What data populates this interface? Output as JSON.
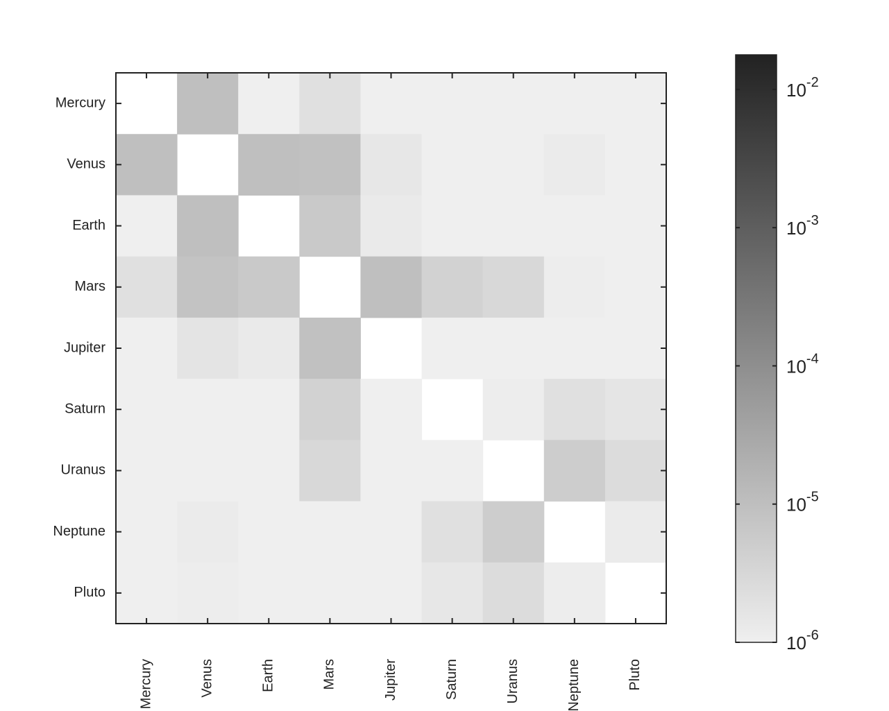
{
  "chart_data": {
    "type": "heatmap",
    "categories": [
      "Mercury",
      "Venus",
      "Earth",
      "Mars",
      "Jupiter",
      "Saturn",
      "Uranus",
      "Neptune",
      "Pluto"
    ],
    "values": [
      [
        null,
        1e-05,
        1e-06,
        2e-06,
        1e-06,
        1e-06,
        1e-06,
        1e-06,
        1e-06
      ],
      [
        1e-05,
        null,
        1e-05,
        9e-06,
        1.5e-06,
        1e-06,
        1e-06,
        1.2e-06,
        1e-06
      ],
      [
        1e-06,
        1e-05,
        null,
        6e-06,
        1.3e-06,
        1e-06,
        1e-06,
        1e-06,
        1e-06
      ],
      [
        2e-06,
        8e-06,
        6e-06,
        null,
        1e-05,
        4e-06,
        3e-06,
        1.1e-06,
        1e-06
      ],
      [
        1e-06,
        1.7e-06,
        1.3e-06,
        9e-06,
        null,
        1e-06,
        1e-06,
        1e-06,
        1e-06
      ],
      [
        1e-06,
        1e-06,
        1e-06,
        4e-06,
        1e-06,
        null,
        1.1e-06,
        2e-06,
        1.6e-06
      ],
      [
        1e-06,
        1e-06,
        1e-06,
        3e-06,
        1e-06,
        1e-06,
        null,
        5e-06,
        2.5e-06
      ],
      [
        1e-06,
        1.2e-06,
        1e-06,
        1e-06,
        1e-06,
        2e-06,
        5e-06,
        null,
        1.2e-06
      ],
      [
        1e-06,
        1.1e-06,
        1e-06,
        1e-06,
        1e-06,
        1.5e-06,
        2.5e-06,
        1.1e-06,
        null
      ]
    ],
    "color_scale": "log",
    "colormap": [
      "#efefef",
      "#222222"
    ],
    "clim": [
      1e-06,
      0.0178
    ],
    "cticks": [
      {
        "value": 1e-06,
        "label": "10^{-6}"
      },
      {
        "value": 1e-05,
        "label": "10^{-5}"
      },
      {
        "value": 0.0001,
        "label": "10^{-4}"
      },
      {
        "value": 0.001,
        "label": "10^{-3}"
      },
      {
        "value": 0.01,
        "label": "10^{-2}"
      }
    ]
  }
}
